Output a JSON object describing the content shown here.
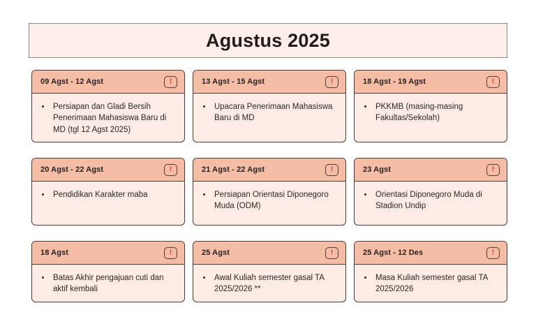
{
  "title": "Agustus 2025",
  "colors": {
    "page_background": "#ffffff",
    "title_fill": "#fdeee9",
    "title_border": "#8d8d8d",
    "card_header_fill": "#f5bda6",
    "card_body_fill": "#fdece6",
    "card_border": "#4a3d36",
    "alert_exclamation": "#c6402e",
    "text": "#27211e"
  },
  "alert_icon_glyph": "!",
  "cards": [
    {
      "date": "09 Agst - 12 Agst",
      "items": [
        "Persiapan dan Gladi Bersih Penerimaan Mahasiswa Baru di MD (tgl 12 Agst 2025)"
      ]
    },
    {
      "date": "13 Agst - 15 Agst",
      "items": [
        "Upacara Penerimaan Mahasiswa Baru di MD"
      ]
    },
    {
      "date": "18 Agst - 19 Agst",
      "items": [
        "PKKMB (masing-masing Fakultas/Sekolah)"
      ]
    },
    {
      "date": "20 Agst - 22 Agst",
      "items": [
        "Pendidikan Karakter maba"
      ]
    },
    {
      "date": "21 Agst - 22 Agst",
      "items": [
        "Persiapan Orientasi Diponegoro Muda (ODM)"
      ]
    },
    {
      "date": "23 Agst",
      "items": [
        "Orientasi Diponegoro Muda di Stadion Undip"
      ]
    },
    {
      "date": "18 Agst",
      "items": [
        "Batas Akhir pengajuan cuti dan aktif kembali"
      ]
    },
    {
      "date": "25 Agst",
      "items": [
        "Awal Kuliah semester gasal TA 2025/2026 **"
      ]
    },
    {
      "date": "25 Agst - 12 Des",
      "items": [
        "Masa Kuliah semester gasal TA 2025/2026"
      ]
    }
  ]
}
